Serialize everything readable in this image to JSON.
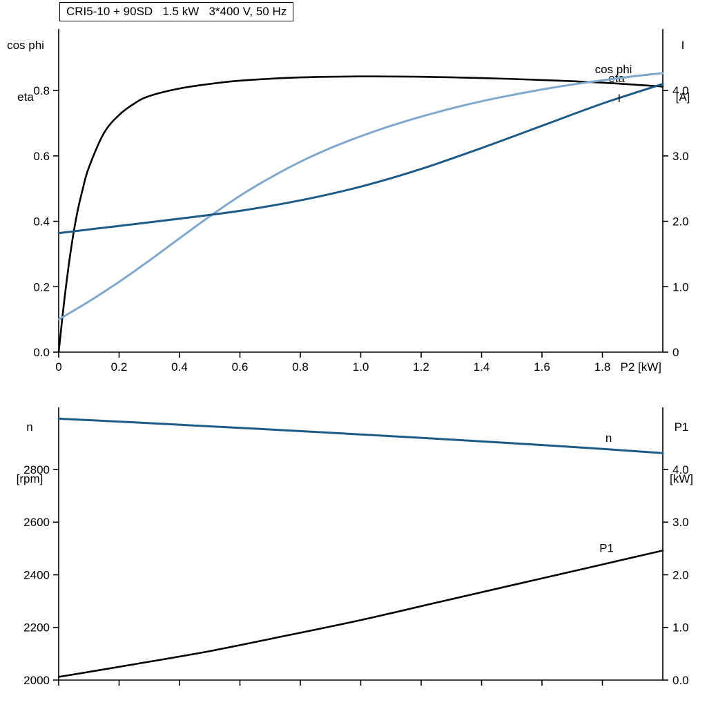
{
  "title_box": {
    "text": "CRI5-10 + 90SD   1.5 kW   3*400 V, 50 Hz"
  },
  "headers": {
    "top_left": {
      "line1": "cos phi",
      "line2": "eta"
    },
    "top_right": {
      "line1": "I",
      "line2": "[A]"
    },
    "bottom_left": {
      "line1": "n",
      "line2": "[rpm]"
    },
    "bottom_right": {
      "line1": "P1",
      "line2": "[kW]"
    }
  },
  "colors": {
    "curve_black": "#000000",
    "curve_dark_blue": "#1d5b87",
    "curve_light_blue": "#7fa8cc",
    "axis": "#000000",
    "background": "#ffffff"
  },
  "chart_data": [
    {
      "type": "line",
      "id": "motor-efficiency-current",
      "grid": false,
      "x_axis": {
        "label": "P2 [kW]",
        "range": [
          0,
          2.0
        ],
        "ticks": [
          {
            "v": 0,
            "label": "0"
          },
          {
            "v": 0.2,
            "label": "0.2"
          },
          {
            "v": 0.4,
            "label": "0.4"
          },
          {
            "v": 0.6,
            "label": "0.6"
          },
          {
            "v": 0.8,
            "label": "0.8"
          },
          {
            "v": 1.0,
            "label": "1.0"
          },
          {
            "v": 1.2,
            "label": "1.2"
          },
          {
            "v": 1.4,
            "label": "1.4"
          },
          {
            "v": 1.6,
            "label": "1.6"
          },
          {
            "v": 1.8,
            "label": "1.8"
          }
        ]
      },
      "left_axis": {
        "title": "cos phi / eta",
        "range": [
          0,
          0.988
        ],
        "ticks": [
          {
            "v": 0,
            "label": "0.0"
          },
          {
            "v": 0.2,
            "label": "0.2"
          },
          {
            "v": 0.4,
            "label": "0.4"
          },
          {
            "v": 0.6,
            "label": "0.6"
          },
          {
            "v": 0.8,
            "label": "0.8"
          }
        ]
      },
      "right_axis": {
        "title": "I [A]",
        "range": [
          0,
          4.94
        ],
        "ticks": [
          {
            "v": 0,
            "label": "0"
          },
          {
            "v": 1.0,
            "label": "1.0"
          },
          {
            "v": 2.0,
            "label": "2.0"
          },
          {
            "v": 3.0,
            "label": "3.0"
          },
          {
            "v": 4.0,
            "label": "4.0"
          }
        ]
      },
      "series": [
        {
          "name": "eta",
          "axis": "left",
          "color": "#000000",
          "width": 2.6,
          "label": {
            "text": "eta",
            "pos": [
              1.82,
              0.825
            ]
          },
          "points": [
            [
              0,
              0
            ],
            [
              0.02,
              0.17
            ],
            [
              0.04,
              0.31
            ],
            [
              0.06,
              0.42
            ],
            [
              0.08,
              0.5
            ],
            [
              0.1,
              0.565
            ],
            [
              0.15,
              0.67
            ],
            [
              0.2,
              0.725
            ],
            [
              0.25,
              0.76
            ],
            [
              0.3,
              0.783
            ],
            [
              0.4,
              0.806
            ],
            [
              0.5,
              0.82
            ],
            [
              0.6,
              0.83
            ],
            [
              0.8,
              0.84
            ],
            [
              1.0,
              0.843
            ],
            [
              1.2,
              0.842
            ],
            [
              1.4,
              0.838
            ],
            [
              1.6,
              0.832
            ],
            [
              1.8,
              0.824
            ],
            [
              2.0,
              0.812
            ]
          ]
        },
        {
          "name": "cos phi",
          "axis": "left",
          "color": "#7fa8cc",
          "width": 3,
          "label": {
            "text": "cos phi",
            "pos": [
              1.775,
              0.853
            ]
          },
          "points": [
            [
              0,
              0.1
            ],
            [
              0.1,
              0.155
            ],
            [
              0.2,
              0.215
            ],
            [
              0.3,
              0.28
            ],
            [
              0.4,
              0.348
            ],
            [
              0.5,
              0.415
            ],
            [
              0.6,
              0.478
            ],
            [
              0.7,
              0.533
            ],
            [
              0.8,
              0.582
            ],
            [
              0.9,
              0.624
            ],
            [
              1.0,
              0.66
            ],
            [
              1.1,
              0.692
            ],
            [
              1.2,
              0.72
            ],
            [
              1.3,
              0.745
            ],
            [
              1.4,
              0.767
            ],
            [
              1.5,
              0.786
            ],
            [
              1.6,
              0.803
            ],
            [
              1.7,
              0.818
            ],
            [
              1.8,
              0.831
            ],
            [
              1.9,
              0.843
            ],
            [
              2.0,
              0.853
            ]
          ]
        },
        {
          "name": "I",
          "axis": "right",
          "color": "#1d5b87",
          "width": 3,
          "label": {
            "text": "I",
            "pos": [
              1.85,
              3.82
            ]
          },
          "points": [
            [
              0,
              1.82
            ],
            [
              0.2,
              1.93
            ],
            [
              0.4,
              2.04
            ],
            [
              0.6,
              2.16
            ],
            [
              0.8,
              2.32
            ],
            [
              1.0,
              2.53
            ],
            [
              1.2,
              2.8
            ],
            [
              1.4,
              3.12
            ],
            [
              1.6,
              3.46
            ],
            [
              1.8,
              3.8
            ],
            [
              2.0,
              4.1
            ]
          ]
        }
      ]
    },
    {
      "type": "line",
      "id": "motor-speed-power",
      "grid": false,
      "x_axis": {
        "label": "",
        "range": [
          0,
          2.0
        ],
        "ticks": [
          {
            "v": 0,
            "label": ""
          },
          {
            "v": 0.2,
            "label": ""
          },
          {
            "v": 0.4,
            "label": ""
          },
          {
            "v": 0.6,
            "label": ""
          },
          {
            "v": 0.8,
            "label": ""
          },
          {
            "v": 1.0,
            "label": ""
          },
          {
            "v": 1.2,
            "label": ""
          },
          {
            "v": 1.4,
            "label": ""
          },
          {
            "v": 1.6,
            "label": ""
          },
          {
            "v": 1.8,
            "label": ""
          }
        ]
      },
      "left_axis": {
        "title": "n [rpm]",
        "range": [
          2000,
          3036
        ],
        "ticks": [
          {
            "v": 2000,
            "label": "2000"
          },
          {
            "v": 2200,
            "label": "2200"
          },
          {
            "v": 2400,
            "label": "2400"
          },
          {
            "v": 2600,
            "label": "2600"
          },
          {
            "v": 2800,
            "label": "2800"
          }
        ]
      },
      "right_axis": {
        "title": "P1 [kW]",
        "range": [
          0,
          5.18
        ],
        "ticks": [
          {
            "v": 0,
            "label": "0.0"
          },
          {
            "v": 1.0,
            "label": "1.0"
          },
          {
            "v": 2.0,
            "label": "2.0"
          },
          {
            "v": 3.0,
            "label": "3.0"
          },
          {
            "v": 4.0,
            "label": "4.0"
          }
        ]
      },
      "series": [
        {
          "name": "n",
          "axis": "left",
          "color": "#1d5b87",
          "width": 3,
          "label": {
            "text": "n",
            "pos": [
              1.81,
              2905
            ]
          },
          "points": [
            [
              0,
              2993
            ],
            [
              0.25,
              2979
            ],
            [
              0.5,
              2964
            ],
            [
              0.75,
              2949
            ],
            [
              1.0,
              2933
            ],
            [
              1.25,
              2917
            ],
            [
              1.5,
              2900
            ],
            [
              1.75,
              2882
            ],
            [
              2.0,
              2862
            ]
          ]
        },
        {
          "name": "P1",
          "axis": "right",
          "color": "#000000",
          "width": 2.6,
          "label": {
            "text": "P1",
            "pos": [
              1.79,
              2.43
            ]
          },
          "points": [
            [
              0,
              0.06
            ],
            [
              0.25,
              0.3
            ],
            [
              0.5,
              0.55
            ],
            [
              0.75,
              0.84
            ],
            [
              1.0,
              1.14
            ],
            [
              1.25,
              1.47
            ],
            [
              1.5,
              1.8
            ],
            [
              1.75,
              2.13
            ],
            [
              2.0,
              2.46
            ]
          ]
        }
      ]
    }
  ]
}
